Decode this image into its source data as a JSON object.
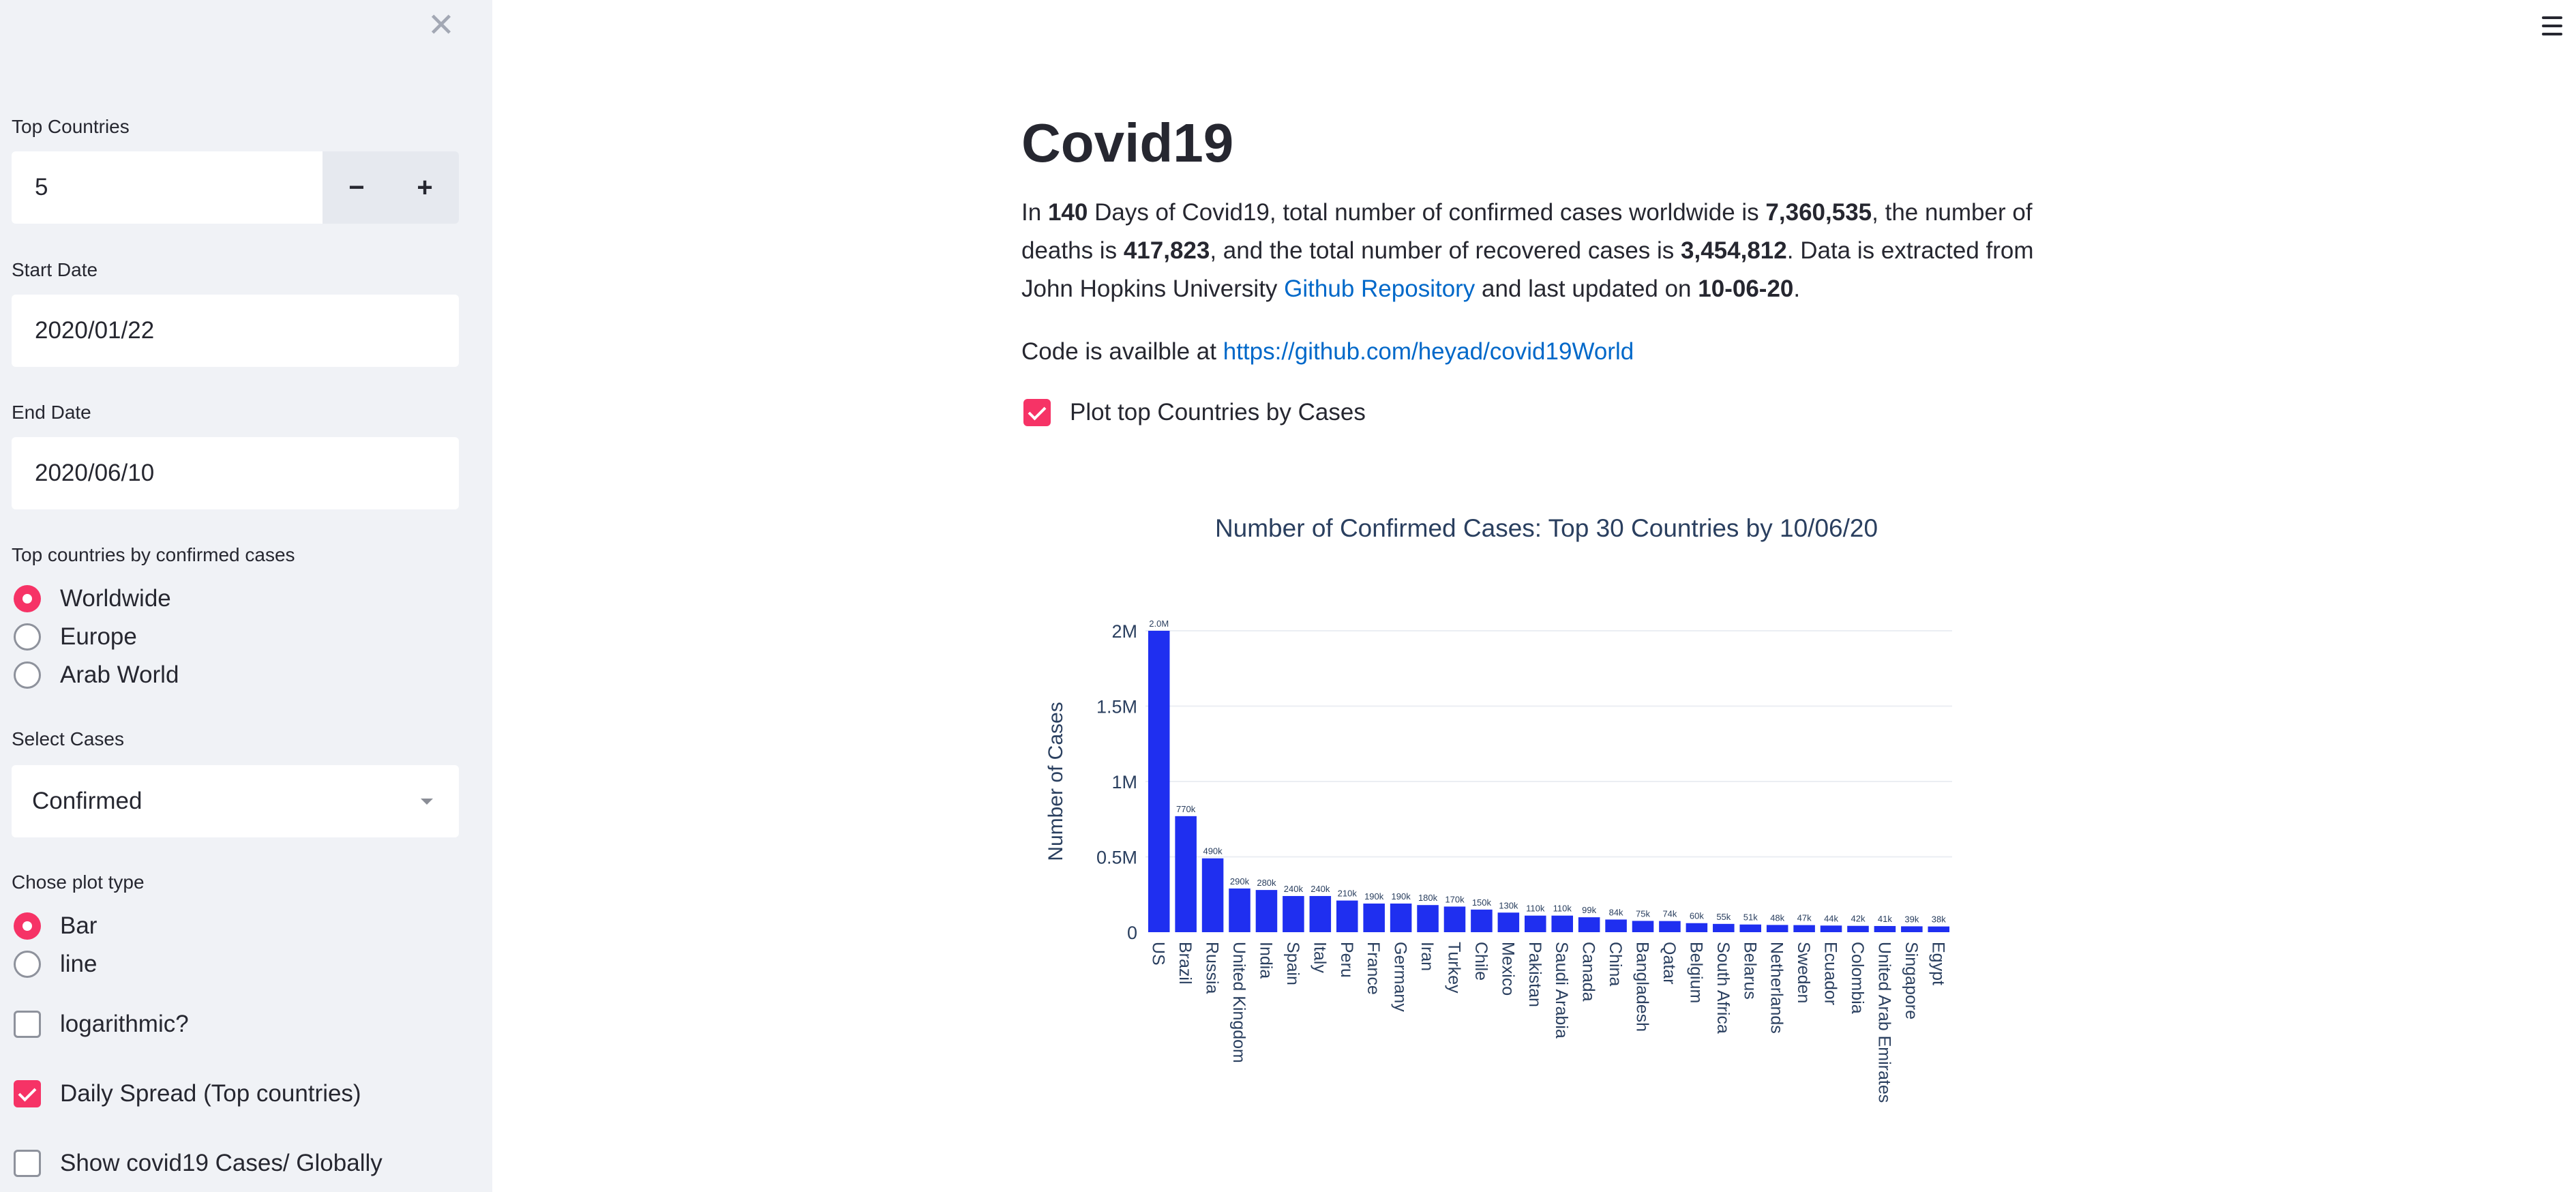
{
  "sidebar": {
    "top_countries_label": "Top Countries",
    "top_countries_value": "5",
    "minus": "−",
    "plus": "+",
    "start_date_label": "Start Date",
    "start_date_value": "2020/01/22",
    "end_date_label": "End Date",
    "end_date_value": "2020/06/10",
    "region_label": "Top countries by confirmed cases",
    "regions": [
      {
        "label": "Worldwide",
        "selected": true
      },
      {
        "label": "Europe",
        "selected": false
      },
      {
        "label": "Arab World",
        "selected": false
      }
    ],
    "select_cases_label": "Select Cases",
    "select_cases_value": "Confirmed",
    "plot_type_label": "Chose plot type",
    "plot_types": [
      {
        "label": "Bar",
        "selected": true
      },
      {
        "label": "line",
        "selected": false
      }
    ],
    "log_label": "logarithmic?",
    "log_checked": false,
    "daily_label": "Daily Spread (Top countries)",
    "daily_checked": true,
    "global_label": "Show covid19 Cases/ Globally",
    "global_checked": false
  },
  "main": {
    "title": "Covid19",
    "p_in": "In",
    "days": "140",
    "p_days": "Days of Covid19, total number of confirmed cases worldwide is",
    "confirmed": "7,360,535",
    "p_deaths": ", the number of deaths is",
    "deaths": "417,823",
    "p_recovered": ", and the total number of recovered cases is",
    "recovered": "3,454,812",
    "p_extracted": ". Data is extracted from John Hopkins University",
    "repo_link": "Github Repository",
    "p_updated": "and last updated on",
    "updated": "10-06-20",
    "p_end": ".",
    "code_prefix": "Code is availble at",
    "code_link": "https://github.com/heyad/covid19World",
    "plot_check_label": "Plot top Countries by Cases",
    "plot_check_checked": true
  },
  "colors": {
    "accent": "#f63366",
    "bar": "#1f2ff0",
    "link": "#0068c9"
  },
  "chart_data": {
    "type": "bar",
    "title": "Number of Confirmed Cases: Top 30 Countries  by 10/06/20",
    "ylabel": "Number of Cases",
    "xlabel": "",
    "ylim": [
      0,
      2000000
    ],
    "yticks": [
      {
        "value": 0,
        "label": "0"
      },
      {
        "value": 500000,
        "label": "0.5M"
      },
      {
        "value": 1000000,
        "label": "1M"
      },
      {
        "value": 1500000,
        "label": "1.5M"
      },
      {
        "value": 2000000,
        "label": "2M"
      }
    ],
    "grid": true,
    "categories": [
      "US",
      "Brazil",
      "Russia",
      "United Kingdom",
      "India",
      "Spain",
      "Italy",
      "Peru",
      "France",
      "Germany",
      "Iran",
      "Turkey",
      "Chile",
      "Mexico",
      "Pakistan",
      "Saudi Arabia",
      "Canada",
      "China",
      "Bangladesh",
      "Qatar",
      "Belgium",
      "South Africa",
      "Belarus",
      "Netherlands",
      "Sweden",
      "Ecuador",
      "Colombia",
      "United Arab Emirates",
      "Singapore",
      "Egypt"
    ],
    "values": [
      2000000,
      770000,
      490000,
      290000,
      280000,
      240000,
      240000,
      210000,
      190000,
      190000,
      180000,
      170000,
      150000,
      130000,
      110000,
      110000,
      99000,
      84000,
      75000,
      74000,
      60000,
      55000,
      51000,
      48000,
      47000,
      44000,
      42000,
      41000,
      39000,
      38000
    ],
    "data_labels": [
      "2.0M",
      "770k",
      "490k",
      "290k",
      "280k",
      "240k",
      "240k",
      "210k",
      "190k",
      "190k",
      "180k",
      "170k",
      "150k",
      "130k",
      "110k",
      "110k",
      "99k",
      "84k",
      "75k",
      "74k",
      "60k",
      "55k",
      "51k",
      "48k",
      "47k",
      "44k",
      "42k",
      "41k",
      "39k",
      "38k"
    ]
  }
}
